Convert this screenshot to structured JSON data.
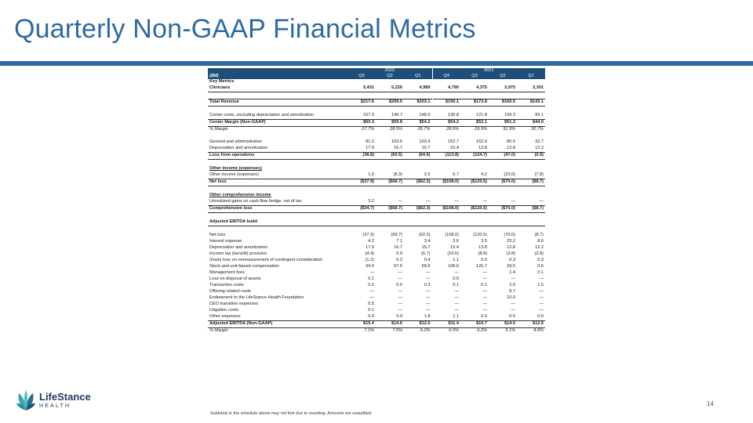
{
  "page": {
    "title": "Quarterly Non-GAAP Financial Metrics",
    "page_number": "14",
    "footnote": "Subtotals in the schedule above may not foot due to rounding. Amounts are unaudited.",
    "logo": {
      "name": "LifeStance",
      "sub": "HEALTH"
    }
  },
  "colors": {
    "accent": "#2e6aa1",
    "header_fill": "#1f4e79"
  },
  "table": {
    "unit_label": "($M)",
    "years": [
      {
        "label": "2022",
        "span": 3
      },
      {
        "label": "2021",
        "span": 4
      }
    ],
    "quarters": [
      "Q3",
      "Q2",
      "Q1",
      "Q4",
      "Q3",
      "Q2",
      "Q1"
    ],
    "rows": [
      {
        "type": "hdrplain",
        "label": "Key Metrics"
      },
      {
        "type": "bold",
        "line": "below",
        "label": "Clinicians",
        "values": [
          "5,431",
          "5,226",
          "4,989",
          "4,790",
          "4,375",
          "3,975",
          "3,301"
        ]
      },
      {
        "type": "blank"
      },
      {
        "type": "bold",
        "line": "both",
        "label": "Total Revenue",
        "values": [
          "$217.6",
          "$209.5",
          "$203.1",
          "$190.1",
          "$173.8",
          "$160.5",
          "$143.1"
        ]
      },
      {
        "type": "blank"
      },
      {
        "type": "normal",
        "line": "below",
        "label": "Center costs, excluding depreciation and amortization",
        "values": [
          "157.3",
          "149.7",
          "148.9",
          "135.8",
          "121.8",
          "109.3",
          "99.1"
        ]
      },
      {
        "type": "bold",
        "line": "below",
        "label": "Center Margin (Non-GAAP)",
        "values": [
          "$60.3",
          "$59.8",
          "$54.2",
          "$54.2",
          "$52.1",
          "$51.2",
          "$44.0"
        ]
      },
      {
        "type": "italic",
        "label": "% Margin",
        "values": [
          "27.7%",
          "28.5%",
          "26.7%",
          "28.5%",
          "29.9%",
          "31.9%",
          "30.7%"
        ]
      },
      {
        "type": "blank"
      },
      {
        "type": "normal",
        "label": "General and administrative",
        "values": [
          "81.2",
          "103.6",
          "103.4",
          "152.7",
          "162.9",
          "85.5",
          "32.7"
        ]
      },
      {
        "type": "normal",
        "line": "below",
        "label": "Depreciation and amortization",
        "values": [
          "17.9",
          "16.7",
          "15.7",
          "15.4",
          "13.8",
          "12.8",
          "12.2"
        ]
      },
      {
        "type": "bold",
        "line": "below",
        "label": "Loss from operations",
        "values": [
          "(38.8)",
          "(60.5)",
          "(64.9)",
          "(113.8)",
          "(124.7)",
          "(47.0)",
          "(0.9)"
        ]
      },
      {
        "type": "blank"
      },
      {
        "type": "hdr",
        "label": "Other income (expenses)"
      },
      {
        "type": "normal",
        "line": "below",
        "label": "Other income (expenses)",
        "values": [
          "1.0",
          "(8.3)",
          "2.5",
          "5.7",
          "4.2",
          "(23.0)",
          "(7.8)"
        ]
      },
      {
        "type": "bold",
        "line": "below",
        "label": "Net loss",
        "values": [
          "($37.9)",
          "($68.7)",
          "($62.3)",
          "($108.0)",
          "($120.5)",
          "($70.0)",
          "($8.7)"
        ]
      },
      {
        "type": "blank"
      },
      {
        "type": "hdr",
        "label": "Other comprehensive income"
      },
      {
        "type": "normal",
        "line": "below",
        "label": "Unrealized gains on cash flow hedge, net of tax",
        "values": [
          "3.2",
          "—",
          "—",
          "—",
          "—",
          "—",
          "—"
        ]
      },
      {
        "type": "bold",
        "line": "below",
        "label": "Comprehensive loss",
        "values": [
          "($34.7)",
          "($68.7)",
          "($62.3)",
          "($108.0)",
          "($120.5)",
          "($70.0)",
          "($8.7)"
        ]
      },
      {
        "type": "blank"
      },
      {
        "type": "hdrplain",
        "line": "below",
        "label": "Adjusted EBITDA build"
      },
      {
        "type": "blank"
      },
      {
        "type": "normal",
        "label": "Net loss",
        "values": [
          "(37.9)",
          "(68.7)",
          "(62.3)",
          "(108.0)",
          "(120.5)",
          "(70.0)",
          "(8.7)"
        ]
      },
      {
        "type": "normal",
        "label": "Interest expense",
        "values": [
          "4.2",
          "7.1",
          "3.4",
          "3.6",
          "3.5",
          "23.2",
          "8.6"
        ]
      },
      {
        "type": "normal",
        "label": "Depreciation and amortization",
        "values": [
          "17.9",
          "16.7",
          "15.7",
          "15.4",
          "13.8",
          "12.8",
          "12.2"
        ]
      },
      {
        "type": "normal",
        "label": "Income tax (benefit) provision",
        "values": [
          "(4.4)",
          "0.9",
          "(6.7)",
          "(10.6)",
          "(8.8)",
          "(3.8)",
          "(2.8)"
        ]
      },
      {
        "type": "normal",
        "label": "(Gain) loss on remeasurement of contingent consideration",
        "values": [
          "(1.2)",
          "0.2",
          "0.4",
          "1.1",
          "0.9",
          "0.3",
          "0.3"
        ]
      },
      {
        "type": "normal",
        "label": "Stock and unit-based compensation",
        "values": [
          "34.9",
          "57.5",
          "59.9",
          "108.6",
          "120.7",
          "29.5",
          "0.6"
        ]
      },
      {
        "type": "normal",
        "label": "Management fees",
        "values": [
          "—",
          "—",
          "—",
          "—",
          "—",
          "1.4",
          "0.1"
        ]
      },
      {
        "type": "normal",
        "label": "Loss on disposal of assets",
        "values": [
          "0.1",
          "—",
          "—",
          "0.0",
          "—",
          "—",
          "—"
        ]
      },
      {
        "type": "normal",
        "label": "Transaction costs",
        "values": [
          "0.2",
          "0.0",
          "0.3",
          "0.1",
          "0.1",
          "2.0",
          "1.5"
        ]
      },
      {
        "type": "normal",
        "label": "Offering related costs",
        "values": [
          "—",
          "—",
          "—",
          "—",
          "—",
          "8.7",
          "—"
        ]
      },
      {
        "type": "normal",
        "label": "Endowment to the LifeStance Health Foundation",
        "values": [
          "—",
          "—",
          "—",
          "—",
          "—",
          "10.0",
          "—"
        ]
      },
      {
        "type": "normal",
        "label": "CEO transition expenses",
        "values": [
          "0.5",
          "—",
          "—",
          "—",
          "—",
          "—",
          "—"
        ]
      },
      {
        "type": "normal",
        "label": "Litigation costs",
        "values": [
          "0.1",
          "—",
          "—",
          "—",
          "—",
          "—",
          "—"
        ]
      },
      {
        "type": "normal",
        "line": "below",
        "label": "Other expenses",
        "values": [
          "0.9",
          "0.9",
          "1.8",
          "1.1",
          "0.9",
          "0.5",
          "0.6"
        ]
      },
      {
        "type": "bold",
        "line": "dbl",
        "label": "Adjusted EBITDA (Non-GAAP)",
        "values": [
          "$15.4",
          "$14.6",
          "$12.5",
          "$11.4",
          "$10.7",
          "$14.5",
          "$12.6"
        ]
      },
      {
        "type": "italic",
        "label": "% Margin",
        "values": [
          "7.1%",
          "7.0%",
          "6.2%",
          "6.0%",
          "6.2%",
          "9.1%",
          "8.8%"
        ]
      }
    ]
  }
}
